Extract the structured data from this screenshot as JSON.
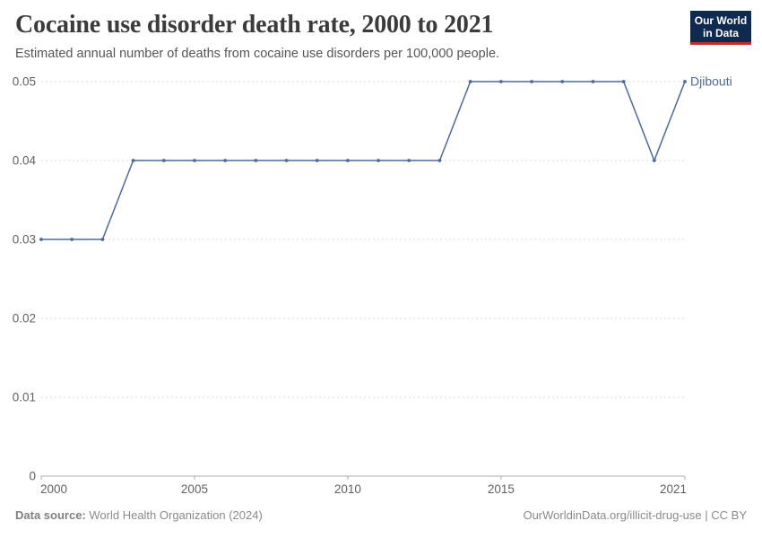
{
  "header": {
    "title": "Cocaine use disorder death rate, 2000 to 2021",
    "subtitle": "Estimated annual number of deaths from cocaine use disorders per 100,000 people.",
    "logo": {
      "line1": "Our World",
      "line2": "in Data"
    }
  },
  "footer": {
    "datasource_label": "Data source:",
    "datasource_value": "World Health Organization (2024)",
    "link_text": "OurWorldinData.org/illicit-drug-use",
    "separator": "|",
    "license": "CC BY"
  },
  "colors": {
    "line": "#4c6a9c",
    "gridline": "#d9d9d9",
    "axis": "#ababab",
    "tick_label": "#616161",
    "logo_bg": "#0e2a4f",
    "logo_red": "#cf2b26",
    "title_text": "#3b3b3b"
  },
  "chart_data": {
    "type": "line",
    "title": "Cocaine use disorder death rate, 2000 to 2021",
    "subtitle": "Estimated annual number of deaths from cocaine use disorders per 100,000 people.",
    "xlabel": "",
    "ylabel": "",
    "xlim": [
      2000,
      2021
    ],
    "ylim": [
      0,
      0.05
    ],
    "grid": "horizontal-dashed",
    "legend_position": "end-of-line-label",
    "xticks": [
      2000,
      2005,
      2010,
      2015,
      2021
    ],
    "xtick_labels": [
      "2000",
      "2005",
      "2010",
      "2015",
      "2021"
    ],
    "yticks": [
      0,
      0.01,
      0.02,
      0.03,
      0.04,
      0.05
    ],
    "ytick_labels": [
      "0",
      "0.01",
      "0.02",
      "0.03",
      "0.04",
      "0.05"
    ],
    "series": [
      {
        "name": "Djibouti",
        "x": [
          2000,
          2001,
          2002,
          2003,
          2004,
          2005,
          2006,
          2007,
          2008,
          2009,
          2010,
          2011,
          2012,
          2013,
          2014,
          2015,
          2016,
          2017,
          2018,
          2019,
          2020,
          2021
        ],
        "values": [
          0.03,
          0.03,
          0.03,
          0.04,
          0.04,
          0.04,
          0.04,
          0.04,
          0.04,
          0.04,
          0.04,
          0.04,
          0.04,
          0.04,
          0.05,
          0.05,
          0.05,
          0.05,
          0.05,
          0.05,
          0.04,
          0.05
        ]
      }
    ]
  }
}
